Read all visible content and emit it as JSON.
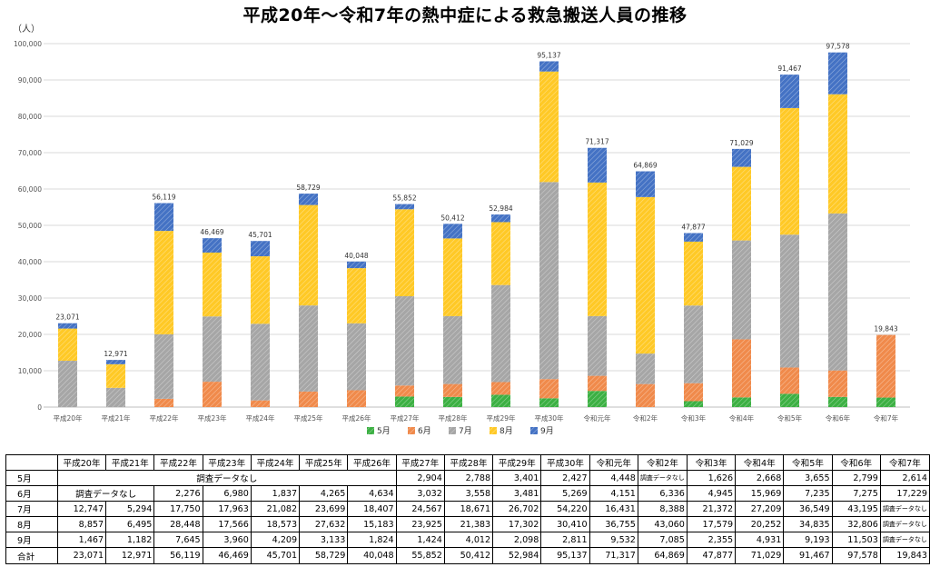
{
  "title": "平成20年～令和7年の熱中症による救急搬送人員の推移",
  "unit_label": "（人）",
  "no_data_label": "調査データなし",
  "total_label": "合計",
  "colors": {
    "5月": "#3cb043",
    "6月": "#f08a4b",
    "7月": "#a6a6a6",
    "8月": "#ffc926",
    "9月": "#4472c4"
  },
  "chart_data": {
    "type": "bar",
    "stacked": true,
    "categories": [
      "平成20年",
      "平成21年",
      "平成22年",
      "平成23年",
      "平成24年",
      "平成25年",
      "平成26年",
      "平成27年",
      "平成28年",
      "平成29年",
      "平成30年",
      "令和元年",
      "令和2年",
      "令和3年",
      "令和4年",
      "令和5年",
      "令和6年",
      "令和7年"
    ],
    "series": [
      {
        "name": "5月",
        "values": [
          null,
          null,
          null,
          null,
          null,
          null,
          null,
          2904,
          2788,
          3401,
          2427,
          4448,
          null,
          1626,
          2668,
          3655,
          2799,
          2614
        ]
      },
      {
        "name": "6月",
        "values": [
          null,
          null,
          2276,
          6980,
          1837,
          4265,
          4634,
          3032,
          3558,
          3481,
          5269,
          4151,
          6336,
          4945,
          15969,
          7235,
          7275,
          17229
        ]
      },
      {
        "name": "7月",
        "values": [
          12747,
          5294,
          17750,
          17963,
          21082,
          23699,
          18407,
          24567,
          18671,
          26702,
          54220,
          16431,
          8388,
          21372,
          27209,
          36549,
          43195,
          null
        ]
      },
      {
        "name": "8月",
        "values": [
          8857,
          6495,
          28448,
          17566,
          18573,
          27632,
          15183,
          23925,
          21383,
          17302,
          30410,
          36755,
          43060,
          17579,
          20252,
          34835,
          32806,
          null
        ]
      },
      {
        "name": "9月",
        "values": [
          1467,
          1182,
          7645,
          3960,
          4209,
          3133,
          1824,
          1424,
          4012,
          2098,
          2811,
          9532,
          7085,
          2355,
          4931,
          9193,
          11503,
          null
        ]
      }
    ],
    "totals": [
      23071,
      12971,
      56119,
      46469,
      45701,
      58729,
      40048,
      55852,
      50412,
      52984,
      95137,
      71317,
      64869,
      47877,
      71029,
      91467,
      97578,
      19843
    ],
    "ylim": [
      0,
      100000
    ],
    "y_ticks": [
      0,
      10000,
      20000,
      30000,
      40000,
      50000,
      60000,
      70000,
      80000,
      90000,
      100000
    ],
    "grid": true,
    "legend_position": "bottom",
    "title": "平成20年～令和7年の熱中症による救急搬送人員の推移",
    "ylabel": "（人）",
    "xlabel": ""
  }
}
